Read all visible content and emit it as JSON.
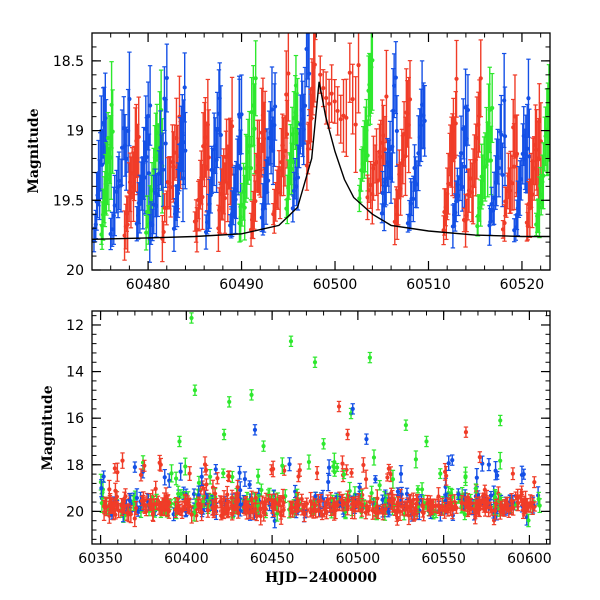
{
  "colors": {
    "green": "#2ee82e",
    "blue": "#1450e6",
    "red": "#f03c28",
    "model": "#000000",
    "frame": "#000000"
  },
  "chart_data": [
    {
      "type": "scatter",
      "title": "",
      "xlabel": "",
      "ylabel": "Magnitude",
      "xlim": [
        60474,
        60523
      ],
      "ylim": [
        20,
        18.3
      ],
      "y_inverted": true,
      "grid": false,
      "legend": "none",
      "x_ticks": [
        60480,
        60490,
        60500,
        60510,
        60520
      ],
      "y_ticks": [
        18.5,
        19,
        19.5,
        20
      ],
      "y_tick_labels": [
        "18.5",
        "19",
        "19.5",
        "20"
      ],
      "series_colors": [
        "green",
        "blue",
        "red"
      ],
      "model_curve": {
        "x": [
          60474,
          60480,
          60485,
          60490,
          60494,
          60496,
          60497.5,
          60498.3,
          60499,
          60500,
          60501,
          60502,
          60504,
          60506,
          60510,
          60515,
          60520,
          60523
        ],
        "y": [
          19.78,
          19.77,
          19.76,
          19.74,
          19.68,
          19.55,
          19.2,
          18.65,
          18.9,
          19.15,
          19.35,
          19.48,
          19.6,
          19.68,
          19.72,
          19.75,
          19.76,
          19.76
        ]
      }
    },
    {
      "type": "scatter",
      "title": "",
      "xlabel": "HJD−2400000",
      "ylabel": "Magnitude",
      "xlim": [
        60345,
        60612
      ],
      "ylim": [
        21.4,
        11.4
      ],
      "y_inverted": true,
      "grid": false,
      "legend": "none",
      "x_ticks": [
        60350,
        60400,
        60450,
        60500,
        60550,
        60600
      ],
      "y_ticks": [
        12,
        14,
        16,
        18,
        20
      ],
      "y_tick_labels": [
        "12",
        "14",
        "16",
        "18",
        "20"
      ],
      "series_colors": [
        "green",
        "blue",
        "red"
      ],
      "outliers": [
        {
          "series": "green",
          "x": [
            60403,
            60461,
            60475,
            60507,
            60396,
            60405,
            60425,
            60438,
            60496,
            60583,
            60528,
            60540,
            60422,
            60445,
            60480
          ],
          "y": [
            11.7,
            12.7,
            13.6,
            13.4,
            17.0,
            14.8,
            15.3,
            15.0,
            15.8,
            16.1,
            16.3,
            17.0,
            16.7,
            17.2,
            17.1
          ]
        },
        {
          "series": "red",
          "x": [
            60489,
            60494,
            60563
          ],
          "y": [
            15.5,
            16.7,
            16.6
          ]
        },
        {
          "series": "blue",
          "x": [
            60497,
            60505,
            60440,
            60555,
            60370
          ],
          "y": [
            15.6,
            16.9,
            16.5,
            17.8,
            18.1
          ]
        }
      ]
    }
  ]
}
